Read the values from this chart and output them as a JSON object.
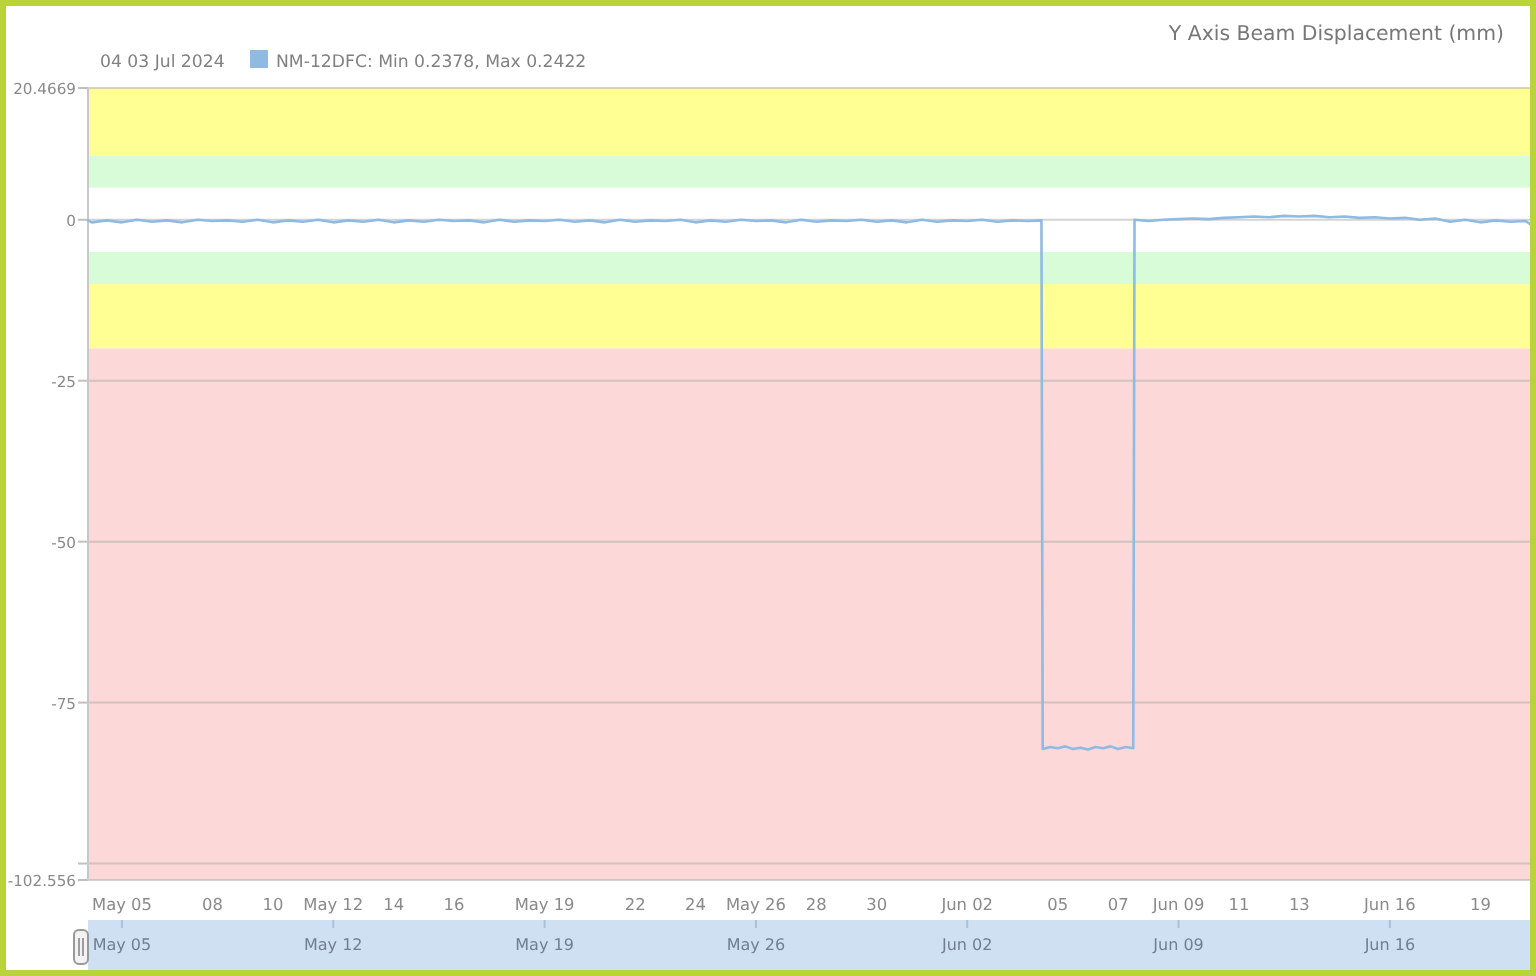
{
  "chart_data": {
    "type": "line",
    "title": "Y Axis Beam Displacement (mm)",
    "subtitle": "04 03 Jul 2024",
    "x": [
      "2024-05-03T21:00",
      "2024-05-04T00:00",
      "2024-05-04T12:00",
      "2024-05-05T00:00",
      "2024-05-05T12:00",
      "2024-05-06T00:00",
      "2024-05-06T12:00",
      "2024-05-07T00:00",
      "2024-05-07T12:00",
      "2024-05-08T00:00",
      "2024-05-08T12:00",
      "2024-05-09T00:00",
      "2024-05-09T12:00",
      "2024-05-10T00:00",
      "2024-05-10T12:00",
      "2024-05-11T00:00",
      "2024-05-11T12:00",
      "2024-05-12T00:00",
      "2024-05-12T12:00",
      "2024-05-13T00:00",
      "2024-05-13T12:00",
      "2024-05-14T00:00",
      "2024-05-14T12:00",
      "2024-05-15T00:00",
      "2024-05-15T12:00",
      "2024-05-16T00:00",
      "2024-05-16T12:00",
      "2024-05-17T00:00",
      "2024-05-17T12:00",
      "2024-05-18T00:00",
      "2024-05-18T12:00",
      "2024-05-19T00:00",
      "2024-05-19T12:00",
      "2024-05-20T00:00",
      "2024-05-20T12:00",
      "2024-05-21T00:00",
      "2024-05-21T12:00",
      "2024-05-22T00:00",
      "2024-05-22T12:00",
      "2024-05-23T00:00",
      "2024-05-23T12:00",
      "2024-05-24T00:00",
      "2024-05-24T12:00",
      "2024-05-25T00:00",
      "2024-05-25T12:00",
      "2024-05-26T00:00",
      "2024-05-26T12:00",
      "2024-05-27T00:00",
      "2024-05-27T12:00",
      "2024-05-28T00:00",
      "2024-05-28T12:00",
      "2024-05-29T00:00",
      "2024-05-29T12:00",
      "2024-05-30T00:00",
      "2024-05-30T12:00",
      "2024-05-31T00:00",
      "2024-05-31T12:00",
      "2024-06-01T00:00",
      "2024-06-01T12:00",
      "2024-06-02T00:00",
      "2024-06-02T12:00",
      "2024-06-03T00:00",
      "2024-06-03T12:00",
      "2024-06-04T00:00",
      "2024-06-04T11:00",
      "2024-06-04T12:00",
      "2024-06-04T18:00",
      "2024-06-05T00:00",
      "2024-06-05T06:00",
      "2024-06-05T12:00",
      "2024-06-05T18:00",
      "2024-06-06T00:00",
      "2024-06-06T06:00",
      "2024-06-06T12:00",
      "2024-06-06T18:00",
      "2024-06-07T00:00",
      "2024-06-07T06:00",
      "2024-06-07T12:00",
      "2024-06-07T13:00",
      "2024-06-08T00:00",
      "2024-06-08T12:00",
      "2024-06-09T00:00",
      "2024-06-09T12:00",
      "2024-06-10T00:00",
      "2024-06-10T12:00",
      "2024-06-11T00:00",
      "2024-06-11T12:00",
      "2024-06-12T00:00",
      "2024-06-12T12:00",
      "2024-06-13T00:00",
      "2024-06-13T12:00",
      "2024-06-14T00:00",
      "2024-06-14T12:00",
      "2024-06-15T00:00",
      "2024-06-15T12:00",
      "2024-06-16T00:00",
      "2024-06-16T12:00",
      "2024-06-17T00:00",
      "2024-06-17T12:00",
      "2024-06-18T00:00",
      "2024-06-18T12:00",
      "2024-06-19T00:00",
      "2024-06-19T12:00",
      "2024-06-20T00:00",
      "2024-06-20T12:00",
      "2024-06-20T17:00"
    ],
    "series": [
      {
        "name": "NM-12DFC: Min 0.2378, Max 0.2422",
        "color": "#8fbbe3",
        "values": [
          -0.1,
          -0.4,
          -0.1,
          -0.4,
          0,
          -0.3,
          -0.1,
          -0.4,
          0,
          -0.2,
          -0.1,
          -0.3,
          0,
          -0.4,
          -0.1,
          -0.3,
          0,
          -0.4,
          -0.1,
          -0.3,
          0,
          -0.4,
          -0.1,
          -0.3,
          0,
          -0.2,
          -0.1,
          -0.4,
          0,
          -0.3,
          -0.1,
          -0.2,
          0,
          -0.3,
          -0.1,
          -0.4,
          0,
          -0.3,
          -0.1,
          -0.2,
          0,
          -0.4,
          -0.1,
          -0.3,
          0,
          -0.2,
          -0.1,
          -0.4,
          0,
          -0.3,
          -0.1,
          -0.2,
          0,
          -0.3,
          -0.1,
          -0.4,
          0,
          -0.3,
          -0.1,
          -0.2,
          0,
          -0.3,
          -0.1,
          -0.2,
          -0.1,
          -82.2,
          -81.9,
          -82.1,
          -81.8,
          -82.2,
          -82.0,
          -82.3,
          -81.9,
          -82.1,
          -81.8,
          -82.2,
          -81.9,
          -82.1,
          0,
          -0.2,
          0,
          0.1,
          0.2,
          0.1,
          0.3,
          0.4,
          0.5,
          0.4,
          0.6,
          0.5,
          0.6,
          0.4,
          0.5,
          0.3,
          0.4,
          0.2,
          0.3,
          0,
          0.2,
          -0.3,
          0,
          -0.4,
          -0.1,
          -0.3,
          -0.2,
          -0.9
        ]
      }
    ],
    "xlim": [
      "2024-05-03T21:00",
      "2024-06-20T17:00"
    ],
    "xticks": [
      {
        "value": "2024-05-05",
        "label": "May 05"
      },
      {
        "value": "2024-05-08",
        "label": "08"
      },
      {
        "value": "2024-05-10",
        "label": "10"
      },
      {
        "value": "2024-05-12",
        "label": "May 12"
      },
      {
        "value": "2024-05-14",
        "label": "14"
      },
      {
        "value": "2024-05-16",
        "label": "16"
      },
      {
        "value": "2024-05-19",
        "label": "May 19"
      },
      {
        "value": "2024-05-22",
        "label": "22"
      },
      {
        "value": "2024-05-24",
        "label": "24"
      },
      {
        "value": "2024-05-26",
        "label": "May 26"
      },
      {
        "value": "2024-05-28",
        "label": "28"
      },
      {
        "value": "2024-05-30",
        "label": "30"
      },
      {
        "value": "2024-06-02",
        "label": "Jun 02"
      },
      {
        "value": "2024-06-05",
        "label": "05"
      },
      {
        "value": "2024-06-07",
        "label": "07"
      },
      {
        "value": "2024-06-09",
        "label": "Jun 09"
      },
      {
        "value": "2024-06-11",
        "label": "11"
      },
      {
        "value": "2024-06-13",
        "label": "13"
      },
      {
        "value": "2024-06-16",
        "label": "Jun 16"
      },
      {
        "value": "2024-06-19",
        "label": "19"
      }
    ],
    "x2lim": [
      "2024-05-03T21:00",
      "2024-06-20T17:00"
    ],
    "x2ticks": [
      {
        "value": "2024-05-05",
        "label": "May 05"
      },
      {
        "value": "2024-05-12",
        "label": "May 12"
      },
      {
        "value": "2024-05-19",
        "label": "May 19"
      },
      {
        "value": "2024-05-26",
        "label": "May 26"
      },
      {
        "value": "2024-06-02",
        "label": "Jun 02"
      },
      {
        "value": "2024-06-09",
        "label": "Jun 09"
      },
      {
        "value": "2024-06-16",
        "label": "Jun 16"
      }
    ],
    "ylim": [
      -102.556,
      20.4669
    ],
    "yticks": [
      20.4669,
      0,
      -25,
      -50,
      -75,
      {
        "value": -100,
        "label": null
      },
      -102.556
    ],
    "bands": [
      {
        "axis": "y",
        "from": 10,
        "to": 20.4669,
        "color": "#ffff94"
      },
      {
        "axis": "y",
        "from": 5,
        "to": 10,
        "color": "#d8fbd8"
      },
      {
        "axis": "y",
        "from": -10,
        "to": -5,
        "color": "#d8fbd8"
      },
      {
        "axis": "y",
        "from": -20,
        "to": -10,
        "color": "#ffff94"
      },
      {
        "axis": "y",
        "from": -102.556,
        "to": -20,
        "color": "#fcd8d8"
      }
    ],
    "grid": "y",
    "legend": "top left"
  }
}
